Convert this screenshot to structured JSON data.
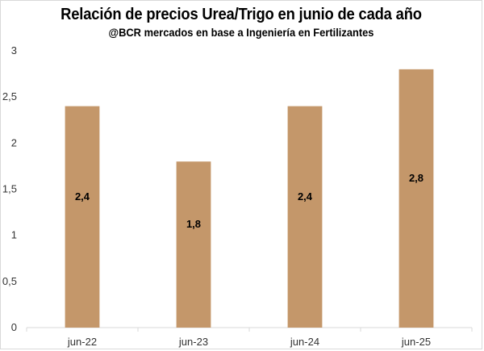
{
  "chart_data": {
    "type": "bar",
    "title": "Relación de precios Urea/Trigo en junio de cada año",
    "subtitle": "@BCR mercados en base a Ingeniería en Fertilizantes",
    "categories": [
      "jun-22",
      "jun-23",
      "jun-24",
      "jun-25"
    ],
    "values": [
      2.4,
      1.8,
      2.4,
      2.8
    ],
    "data_labels": [
      "2,4",
      "1,8",
      "2,4",
      "2,8"
    ],
    "ylim": [
      0,
      3
    ],
    "yticks": [
      0,
      0.5,
      1,
      1.5,
      2,
      2.5,
      3
    ],
    "ytick_labels": [
      "0",
      "0,5",
      "1",
      "1,5",
      "2",
      "2,5",
      "3"
    ],
    "xlabel": "",
    "ylabel": "",
    "grid": false,
    "bar_color": "#c4976a"
  }
}
